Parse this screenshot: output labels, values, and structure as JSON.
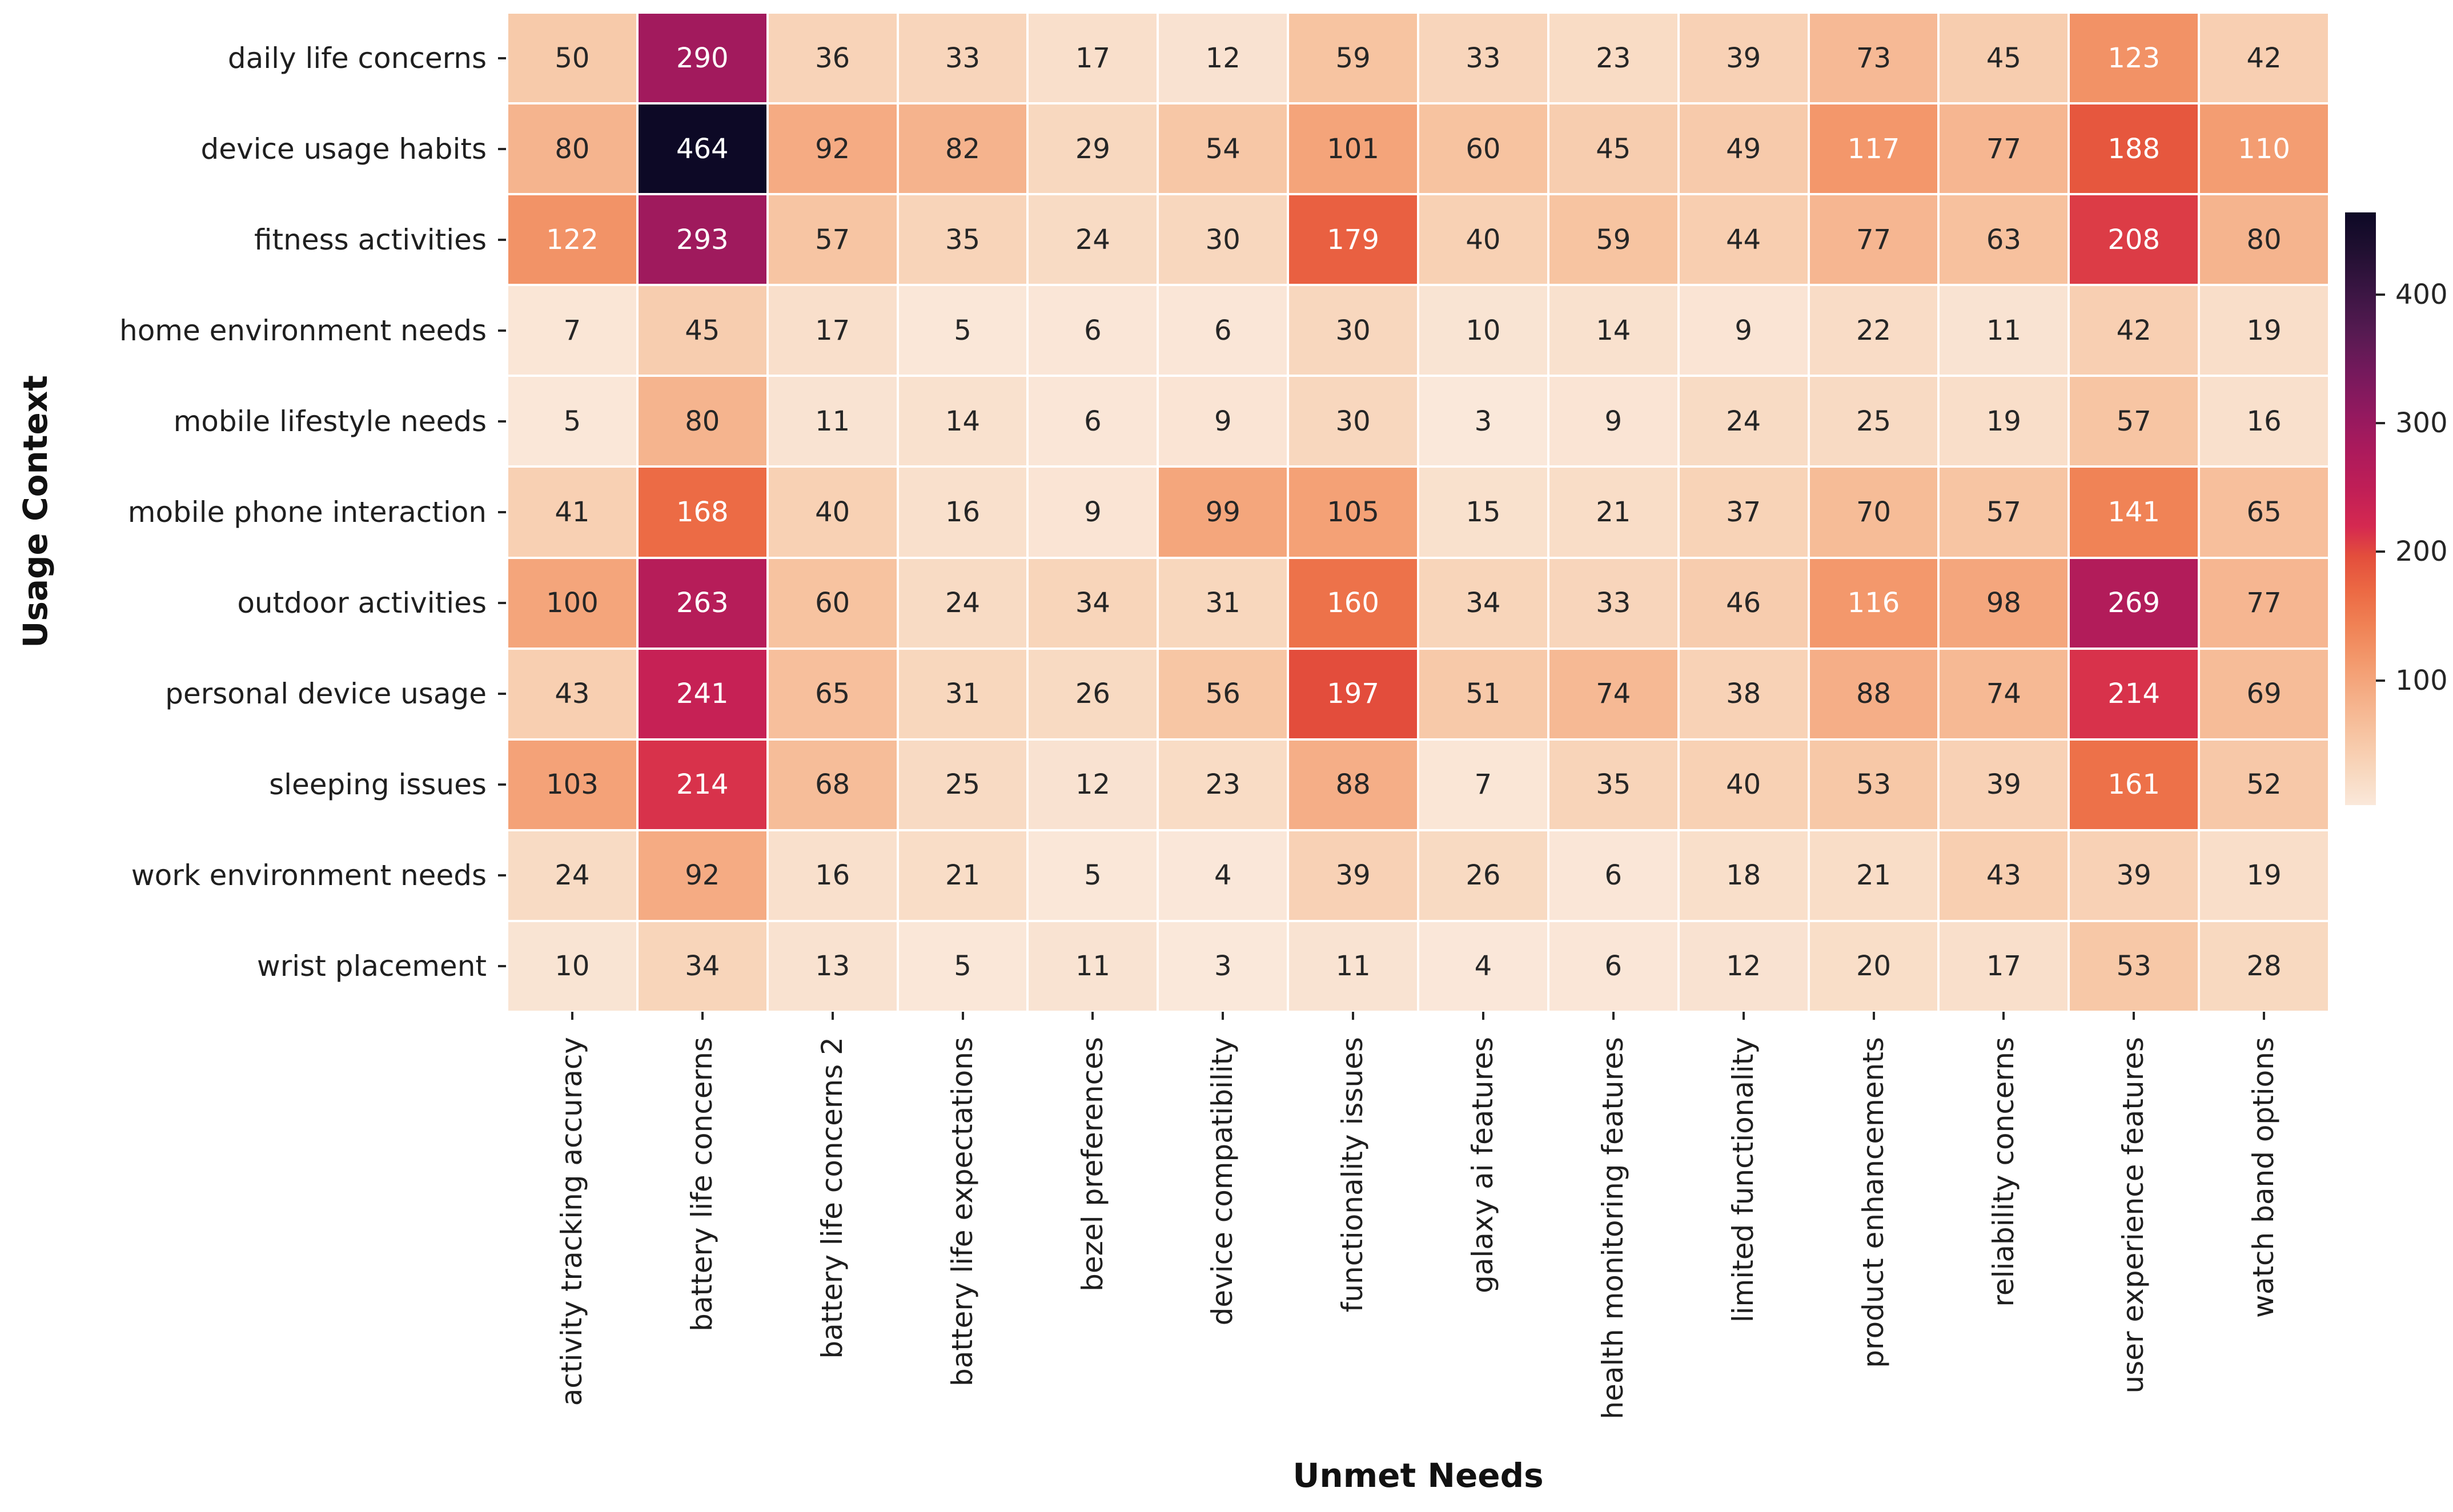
{
  "chart_data": {
    "type": "heatmap",
    "xlabel": "Unmet Needs",
    "ylabel": "Usage Context",
    "rows": [
      "daily life concerns",
      "device usage habits",
      "fitness activities",
      "home environment needs",
      "mobile lifestyle needs",
      "mobile phone interaction",
      "outdoor activities",
      "personal device usage",
      "sleeping issues",
      "work environment needs",
      "wrist placement"
    ],
    "columns": [
      "activity tracking accuracy",
      "battery life concerns",
      "battery life concerns 2",
      "battery life expectations",
      "bezel preferences",
      "device compatibility",
      "functionality issues",
      "galaxy ai features",
      "health monitoring features",
      "limited functionality",
      "product enhancements",
      "reliability concerns",
      "user experience features",
      "watch band options"
    ],
    "values": [
      [
        50,
        290,
        36,
        33,
        17,
        12,
        59,
        33,
        23,
        39,
        73,
        45,
        123,
        42
      ],
      [
        80,
        464,
        92,
        82,
        29,
        54,
        101,
        60,
        45,
        49,
        117,
        77,
        188,
        110
      ],
      [
        122,
        293,
        57,
        35,
        24,
        30,
        179,
        40,
        59,
        44,
        77,
        63,
        208,
        80
      ],
      [
        7,
        45,
        17,
        5,
        6,
        6,
        30,
        10,
        14,
        9,
        22,
        11,
        42,
        19
      ],
      [
        5,
        80,
        11,
        14,
        6,
        9,
        30,
        3,
        9,
        24,
        25,
        19,
        57,
        16
      ],
      [
        41,
        168,
        40,
        16,
        9,
        99,
        105,
        15,
        21,
        37,
        70,
        57,
        141,
        65
      ],
      [
        100,
        263,
        60,
        24,
        34,
        31,
        160,
        34,
        33,
        46,
        116,
        98,
        269,
        77
      ],
      [
        43,
        241,
        65,
        31,
        26,
        56,
        197,
        51,
        74,
        38,
        88,
        74,
        214,
        69
      ],
      [
        103,
        214,
        68,
        25,
        12,
        23,
        88,
        7,
        35,
        40,
        53,
        39,
        161,
        52
      ],
      [
        24,
        92,
        16,
        21,
        5,
        4,
        39,
        26,
        6,
        18,
        21,
        43,
        39,
        19
      ],
      [
        10,
        34,
        13,
        5,
        11,
        3,
        11,
        4,
        6,
        12,
        20,
        17,
        53,
        28
      ]
    ],
    "colorbar": {
      "ticks": [
        100,
        200,
        300,
        400
      ],
      "vmin": 3,
      "vmax": 464,
      "position": "right"
    },
    "colormap": "rocket_r",
    "colormap_stops": [
      [
        0.0,
        "#fae8da"
      ],
      [
        0.06,
        "#f8d7bd"
      ],
      [
        0.12,
        "#f7c4a2"
      ],
      [
        0.18,
        "#f5b089"
      ],
      [
        0.24,
        "#f39a6e"
      ],
      [
        0.3,
        "#f08356"
      ],
      [
        0.36,
        "#ec6a44"
      ],
      [
        0.42,
        "#e34e3c"
      ],
      [
        0.47,
        "#d52950"
      ],
      [
        0.53,
        "#c11f56"
      ],
      [
        0.6,
        "#ab1a5c"
      ],
      [
        0.66,
        "#93195f"
      ],
      [
        0.73,
        "#75195c"
      ],
      [
        0.8,
        "#551a51"
      ],
      [
        0.87,
        "#391542"
      ],
      [
        0.94,
        "#1f0f30"
      ],
      [
        1.0,
        "#0d0926"
      ]
    ],
    "annotation_white_text_min_value": 110,
    "colors": {
      "background": "#ffffff",
      "grid_line": "#ffffff",
      "annotation_dark": "#262626",
      "annotation_light": "#ffffff",
      "tick": "#262626",
      "label_text": "#1f1f1f",
      "axis_title_text": "#111111"
    },
    "legend": "none",
    "grid": "white cell separators"
  }
}
